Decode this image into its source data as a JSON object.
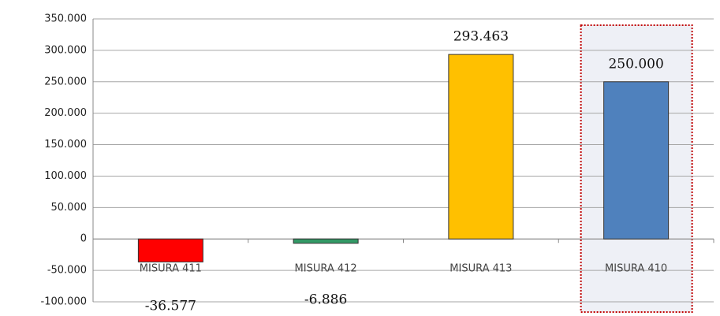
{
  "chart_data": {
    "type": "bar",
    "categories": [
      "MISURA 411",
      "MISURA 412",
      "MISURA 413",
      "MISURA 410"
    ],
    "values": [
      -36577,
      -6886,
      293463,
      250000
    ],
    "value_labels": [
      "-36.577",
      "-6.886",
      "293.463",
      "250.000"
    ],
    "colors": [
      "#ff0000",
      "#339966",
      "#ffc000",
      "#4f81bd"
    ],
    "ylim": [
      -100000,
      350000
    ],
    "yticks": [
      {
        "value": -100000,
        "label": "-100.000"
      },
      {
        "value": -50000,
        "label": "-50.000"
      },
      {
        "value": 0,
        "label": "0"
      },
      {
        "value": 50000,
        "label": "50.000"
      },
      {
        "value": 100000,
        "label": "100.000"
      },
      {
        "value": 150000,
        "label": "150.000"
      },
      {
        "value": 200000,
        "label": "200.000"
      },
      {
        "value": 250000,
        "label": "250.000"
      },
      {
        "value": 300000,
        "label": "300.000"
      },
      {
        "value": 350000,
        "label": "350.000"
      }
    ],
    "grid": true
  }
}
